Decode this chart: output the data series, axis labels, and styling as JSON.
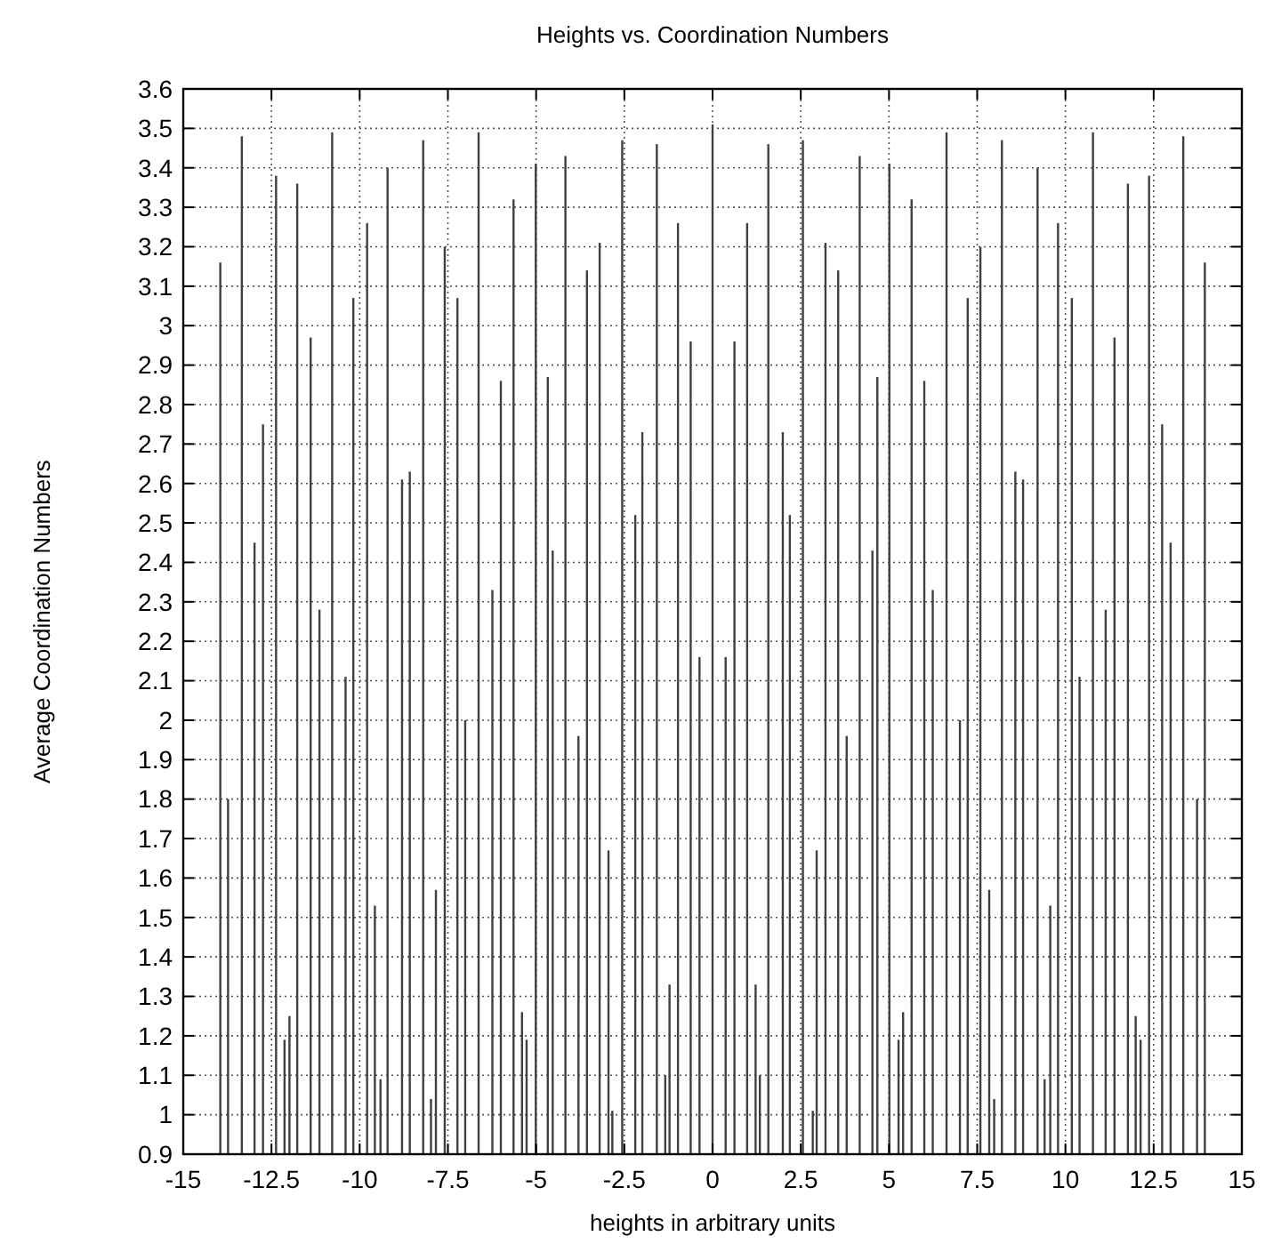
{
  "chart_data": {
    "type": "bar",
    "title": "Heights vs. Coordination Numbers",
    "xlabel": "heights in arbitrary units",
    "ylabel": "Average Coordination Numbers",
    "x": [
      -13.95,
      -13.73,
      -13.34,
      -12.98,
      -12.74,
      -12.37,
      -12.13,
      -11.99,
      -11.77,
      -11.39,
      -11.14,
      -10.78,
      -10.4,
      -10.18,
      -9.79,
      -9.57,
      -9.41,
      -9.21,
      -8.8,
      -8.58,
      -8.2,
      -7.98,
      -7.84,
      -7.59,
      -7.23,
      -7.01,
      -6.63,
      -6.24,
      -6,
      -5.64,
      -5.4,
      -5.27,
      -5.01,
      -4.67,
      -4.53,
      -4.17,
      -3.8,
      -3.56,
      -3.2,
      -2.95,
      -2.84,
      -2.56,
      -2.19,
      -1.99,
      -1.58,
      -1.34,
      -1.22,
      -0.98,
      -0.62,
      -0.37,
      0,
      0.37,
      0.62,
      0.98,
      1.22,
      1.34,
      1.58,
      1.99,
      2.19,
      2.56,
      2.84,
      2.95,
      3.2,
      3.56,
      3.8,
      4.17,
      4.53,
      4.67,
      5.01,
      5.27,
      5.4,
      5.64,
      6,
      6.24,
      6.63,
      7.01,
      7.23,
      7.59,
      7.84,
      7.98,
      8.2,
      8.58,
      8.8,
      9.21,
      9.41,
      9.57,
      9.79,
      10.18,
      10.4,
      10.78,
      11.14,
      11.39,
      11.77,
      11.99,
      12.13,
      12.37,
      12.74,
      12.98,
      13.34,
      13.73,
      13.95
    ],
    "values": [
      3.16,
      1.8,
      3.48,
      2.45,
      2.75,
      3.38,
      1.19,
      1.25,
      3.36,
      2.97,
      2.28,
      3.49,
      2.11,
      3.07,
      3.26,
      1.53,
      1.09,
      3.4,
      2.61,
      2.63,
      3.47,
      1.04,
      1.57,
      3.2,
      3.07,
      2,
      3.49,
      2.33,
      2.86,
      3.32,
      1.26,
      1.19,
      3.41,
      2.87,
      2.43,
      3.43,
      1.96,
      3.14,
      3.21,
      1.67,
      1.01,
      3.47,
      2.52,
      2.73,
      3.46,
      1.1,
      1.33,
      3.26,
      2.96,
      2.16,
      3.51,
      2.16,
      2.96,
      3.26,
      1.33,
      1.1,
      3.46,
      2.73,
      2.52,
      3.47,
      1.01,
      1.67,
      3.21,
      3.14,
      1.96,
      3.43,
      2.43,
      2.87,
      3.41,
      1.19,
      1.26,
      3.32,
      2.86,
      2.33,
      3.49,
      2,
      3.07,
      3.2,
      1.57,
      1.04,
      3.47,
      2.63,
      2.61,
      3.4,
      1.09,
      1.53,
      3.26,
      3.07,
      2.11,
      3.49,
      2.28,
      2.97,
      3.36,
      1.25,
      1.19,
      3.38,
      2.75,
      2.45,
      3.48,
      1.8,
      3.16
    ],
    "color": "#404040",
    "xlim": [
      -15,
      15
    ],
    "xticks": [
      -15,
      -12.5,
      -10,
      -7.5,
      -5,
      -2.5,
      0,
      2.5,
      5,
      7.5,
      10,
      12.5,
      15
    ],
    "ylim": [
      0.9,
      3.6
    ],
    "yticks": [
      0.9,
      1,
      1.1,
      1.2,
      1.3,
      1.4,
      1.5,
      1.6,
      1.7,
      1.8,
      1.9,
      2,
      2.1,
      2.2,
      2.3,
      2.4,
      2.5,
      2.6,
      2.7,
      2.8,
      2.9,
      3,
      3.1,
      3.2,
      3.3,
      3.4,
      3.5,
      3.6
    ],
    "grid": true
  }
}
